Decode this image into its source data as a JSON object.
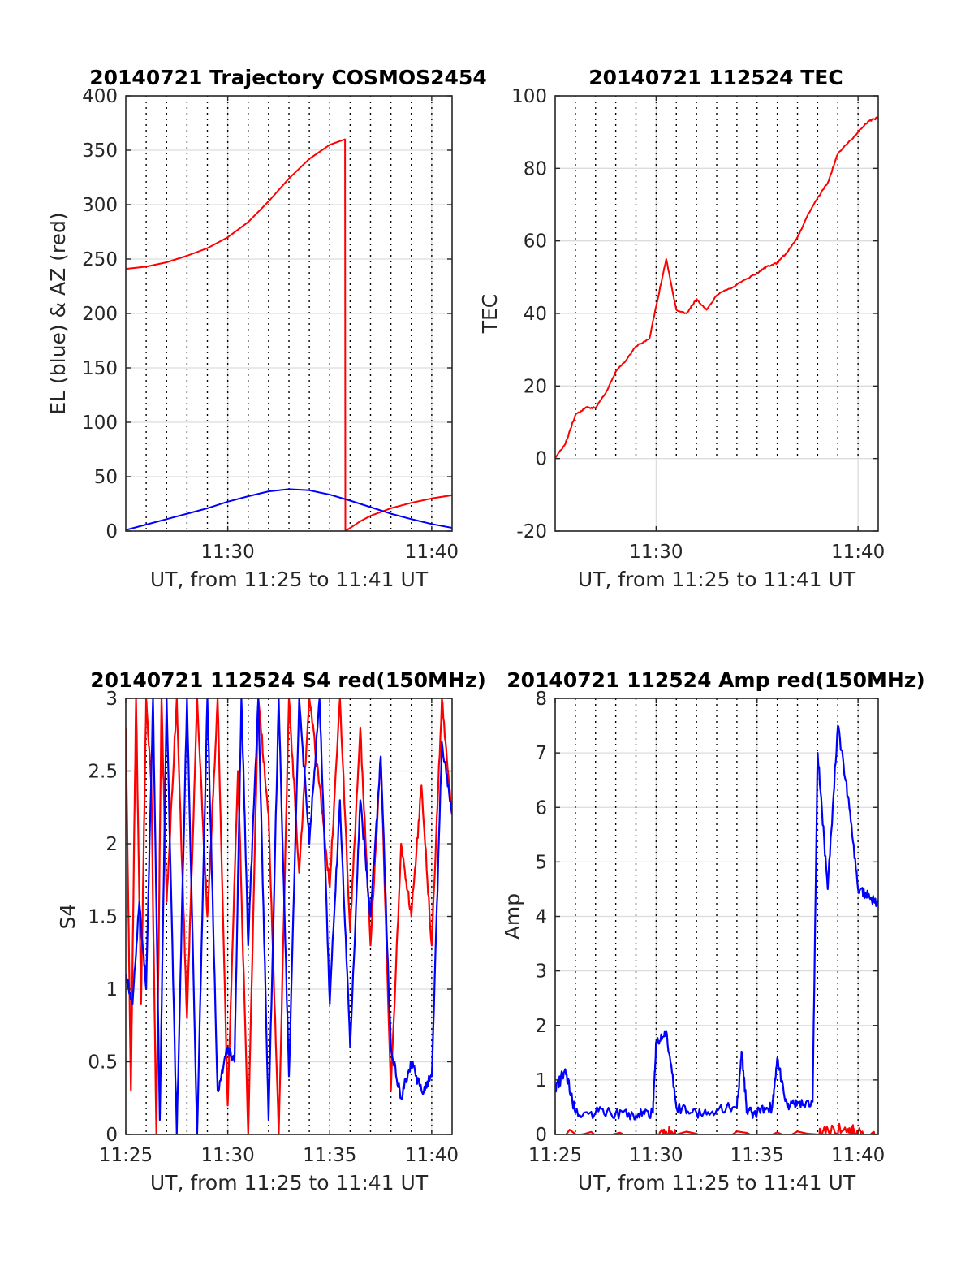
{
  "figure": {
    "background": "#ffffff",
    "colors": {
      "red": "#ff0000",
      "blue": "#0000ff",
      "axis": "#262626"
    }
  },
  "chart_data": [
    {
      "type": "line",
      "title": "20140721 Trajectory COSMOS2454",
      "xlabel": "UT, from 11:25 to 11:41 UT",
      "ylabel": "EL (blue) & AZ (red)",
      "xlim": [
        "11:25",
        "11:41"
      ],
      "ylim": [
        0,
        400
      ],
      "xticks": [
        "11:30",
        "11:40"
      ],
      "yticks": [
        0,
        50,
        100,
        150,
        200,
        250,
        300,
        350,
        400
      ],
      "dotted_time_grid": "every 1 min",
      "grid": true,
      "series": [
        {
          "color": "#ff0000",
          "points": [
            [
              "11:25:00",
              241
            ],
            [
              "11:26:00",
              243
            ],
            [
              "11:27:00",
              247
            ],
            [
              "11:28:00",
              253
            ],
            [
              "11:29:00",
              260
            ],
            [
              "11:30:00",
              270
            ],
            [
              "11:31:00",
              284
            ],
            [
              "11:32:00",
              303
            ],
            [
              "11:33:00",
              324
            ],
            [
              "11:34:00",
              342
            ],
            [
              "11:35:00",
              355
            ],
            [
              "11:35:45",
              360
            ],
            [
              "11:35:46",
              0
            ],
            [
              "11:36:30",
              9
            ],
            [
              "11:37:00",
              14
            ],
            [
              "11:38:00",
              21
            ],
            [
              "11:39:00",
              26
            ],
            [
              "11:40:00",
              30
            ],
            [
              "11:41:00",
              33
            ]
          ]
        },
        {
          "color": "#0000ff",
          "points": [
            [
              "11:25:00",
              1
            ],
            [
              "11:26:00",
              6
            ],
            [
              "11:27:00",
              11
            ],
            [
              "11:28:00",
              16
            ],
            [
              "11:29:00",
              21
            ],
            [
              "11:30:00",
              27
            ],
            [
              "11:31:00",
              32
            ],
            [
              "11:32:00",
              36.5
            ],
            [
              "11:33:00",
              38.5
            ],
            [
              "11:34:00",
              37.5
            ],
            [
              "11:35:00",
              33.5
            ],
            [
              "11:36:00",
              28
            ],
            [
              "11:37:00",
              22
            ],
            [
              "11:38:00",
              16
            ],
            [
              "11:39:00",
              11
            ],
            [
              "11:40:00",
              6.5
            ],
            [
              "11:41:00",
              3
            ]
          ]
        }
      ]
    },
    {
      "type": "line",
      "title": "20140721 112524 TEC",
      "xlabel": "UT, from 11:25 to 11:41 UT",
      "ylabel": "TEC",
      "xlim": [
        "11:25",
        "11:41"
      ],
      "ylim": [
        -20,
        100
      ],
      "xticks": [
        "11:30",
        "11:40"
      ],
      "yticks": [
        -20,
        0,
        20,
        40,
        60,
        80,
        100
      ],
      "dotted_time_grid": "every 1 min, above TEC 0",
      "grid": true,
      "series": [
        {
          "color": "#ff0000",
          "points": [
            [
              "11:25:00",
              0
            ],
            [
              "11:25:30",
              4
            ],
            [
              "11:26:00",
              12
            ],
            [
              "11:26:30",
              14
            ],
            [
              "11:27:00",
              14
            ],
            [
              "11:27:30",
              18
            ],
            [
              "11:28:00",
              24
            ],
            [
              "11:28:30",
              27
            ],
            [
              "11:29:00",
              31
            ],
            [
              "11:29:40",
              33
            ],
            [
              "11:30:00",
              42
            ],
            [
              "11:30:30",
              55
            ],
            [
              "11:31:00",
              41
            ],
            [
              "11:31:30",
              40
            ],
            [
              "11:32:00",
              44
            ],
            [
              "11:32:30",
              41
            ],
            [
              "11:33:00",
              45
            ],
            [
              "11:34:00",
              48
            ],
            [
              "11:35:00",
              51
            ],
            [
              "11:35:30",
              53
            ],
            [
              "11:36:00",
              54
            ],
            [
              "11:36:30",
              57
            ],
            [
              "11:37:00",
              61
            ],
            [
              "11:37:30",
              67
            ],
            [
              "11:38:00",
              72
            ],
            [
              "11:38:30",
              76
            ],
            [
              "11:39:00",
              84
            ],
            [
              "11:39:30",
              87
            ],
            [
              "11:40:00",
              90
            ],
            [
              "11:40:30",
              93
            ],
            [
              "11:41:00",
              94
            ]
          ]
        }
      ]
    },
    {
      "type": "line",
      "title": "20140721 112524 S4 red(150MHz)",
      "xlabel": "UT, from 11:25 to 11:41 UT",
      "ylabel": "S4",
      "xlim": [
        "11:25",
        "11:41"
      ],
      "ylim": [
        0,
        3
      ],
      "xticks": [
        "11:25",
        "11:30",
        "11:35",
        "11:40"
      ],
      "yticks": [
        "0",
        "0.5",
        "1",
        "1.5",
        "2",
        "2.5",
        "3"
      ],
      "dotted_time_grid": "every 1 min",
      "grid": true,
      "series": [
        {
          "color": "#ff0000",
          "points": [
            [
              "11:25:00",
              2.8
            ],
            [
              "11:25:15",
              0.3
            ],
            [
              "11:25:30",
              3
            ],
            [
              "11:25:45",
              0.9
            ],
            [
              "11:26:00",
              3
            ],
            [
              "11:26:15",
              2.4
            ],
            [
              "11:26:30",
              0
            ],
            [
              "11:26:45",
              3
            ],
            [
              "11:27:00",
              1.6
            ],
            [
              "11:27:30",
              3
            ],
            [
              "11:28:00",
              0.8
            ],
            [
              "11:28:30",
              3
            ],
            [
              "11:29:00",
              1.5
            ],
            [
              "11:29:30",
              3
            ],
            [
              "11:30:00",
              0.2
            ],
            [
              "11:30:30",
              2.5
            ],
            [
              "11:31:00",
              0
            ],
            [
              "11:31:30",
              3
            ],
            [
              "11:32:00",
              2.2
            ],
            [
              "11:32:30",
              0
            ],
            [
              "11:33:00",
              3
            ],
            [
              "11:33:30",
              1.8
            ],
            [
              "11:34:00",
              3
            ],
            [
              "11:34:30",
              2.4
            ],
            [
              "11:35:00",
              1.7
            ],
            [
              "11:35:30",
              3
            ],
            [
              "11:36:00",
              1.4
            ],
            [
              "11:36:30",
              2.8
            ],
            [
              "11:37:00",
              1.3
            ],
            [
              "11:37:30",
              2.6
            ],
            [
              "11:38:00",
              0.3
            ],
            [
              "11:38:30",
              2
            ],
            [
              "11:39:00",
              1.5
            ],
            [
              "11:39:30",
              2.4
            ],
            [
              "11:40:00",
              1.3
            ],
            [
              "11:40:30",
              3
            ],
            [
              "11:41:00",
              2.2
            ]
          ]
        },
        {
          "color": "#0000ff",
          "points": [
            [
              "11:25:00",
              1.1
            ],
            [
              "11:25:20",
              0.9
            ],
            [
              "11:25:40",
              1.6
            ],
            [
              "11:26:00",
              1
            ],
            [
              "11:26:20",
              3
            ],
            [
              "11:26:40",
              0.1
            ],
            [
              "11:27:00",
              3
            ],
            [
              "11:27:30",
              0
            ],
            [
              "11:28:00",
              3
            ],
            [
              "11:28:30",
              0
            ],
            [
              "11:29:00",
              3
            ],
            [
              "11:29:30",
              0.3
            ],
            [
              "11:30:00",
              0.6
            ],
            [
              "11:30:20",
              0.5
            ],
            [
              "11:30:40",
              3
            ],
            [
              "11:31:00",
              1.3
            ],
            [
              "11:31:30",
              3
            ],
            [
              "11:32:00",
              0.1
            ],
            [
              "11:32:30",
              3
            ],
            [
              "11:33:00",
              0.4
            ],
            [
              "11:33:30",
              3
            ],
            [
              "11:34:00",
              2
            ],
            [
              "11:34:30",
              3
            ],
            [
              "11:35:00",
              0.9
            ],
            [
              "11:35:30",
              2.3
            ],
            [
              "11:36:00",
              0.6
            ],
            [
              "11:36:30",
              2.3
            ],
            [
              "11:37:00",
              1.5
            ],
            [
              "11:37:30",
              2.6
            ],
            [
              "11:38:00",
              0.6
            ],
            [
              "11:38:30",
              0.25
            ],
            [
              "11:39:00",
              0.5
            ],
            [
              "11:39:30",
              0.3
            ],
            [
              "11:40:00",
              0.4
            ],
            [
              "11:40:30",
              2.7
            ],
            [
              "11:41:00",
              2.2
            ]
          ]
        }
      ]
    },
    {
      "type": "line",
      "title": "20140721 112524 Amp red(150MHz)",
      "xlabel": "UT, from 11:25 to 11:41 UT",
      "ylabel": "Amp",
      "xlim": [
        "11:25",
        "11:41"
      ],
      "ylim": [
        0,
        8
      ],
      "xticks": [
        "11:25",
        "11:30",
        "11:35",
        "11:40"
      ],
      "yticks": [
        0,
        1,
        2,
        3,
        4,
        5,
        6,
        7,
        8
      ],
      "dotted_time_grid": "every 1 min",
      "grid": true,
      "series": [
        {
          "color": "#0000ff",
          "points": [
            [
              "11:25:00",
              0.8
            ],
            [
              "11:25:30",
              1.2
            ],
            [
              "11:26:00",
              0.4
            ],
            [
              "11:27:00",
              0.4
            ],
            [
              "11:28:00",
              0.4
            ],
            [
              "11:29:00",
              0.35
            ],
            [
              "11:29:50",
              0.4
            ],
            [
              "11:30:00",
              1.7
            ],
            [
              "11:30:30",
              1.9
            ],
            [
              "11:31:00",
              0.5
            ],
            [
              "11:32:00",
              0.4
            ],
            [
              "11:33:00",
              0.45
            ],
            [
              "11:34:00",
              0.5
            ],
            [
              "11:34:15",
              1.5
            ],
            [
              "11:34:30",
              0.4
            ],
            [
              "11:35:00",
              0.4
            ],
            [
              "11:35:45",
              0.5
            ],
            [
              "11:36:00",
              1.4
            ],
            [
              "11:36:30",
              0.5
            ],
            [
              "11:37:00",
              0.6
            ],
            [
              "11:37:45",
              0.6
            ],
            [
              "11:38:00",
              7
            ],
            [
              "11:38:30",
              4.5
            ],
            [
              "11:39:00",
              7.5
            ],
            [
              "11:39:30",
              6.2
            ],
            [
              "11:40:00",
              4.5
            ],
            [
              "11:40:30",
              4.4
            ],
            [
              "11:41:00",
              4.2
            ]
          ]
        },
        {
          "color": "#ff0000",
          "points": [
            [
              "11:25:00",
              0
            ],
            [
              "11:30:00",
              0
            ],
            [
              "11:30:30",
              0.05
            ],
            [
              "11:31:00",
              0
            ],
            [
              "11:38:00",
              0
            ],
            [
              "11:38:30",
              0.1
            ],
            [
              "11:39:30",
              0.1
            ],
            [
              "11:40:00",
              0.05
            ],
            [
              "11:41:00",
              0
            ]
          ]
        }
      ]
    }
  ]
}
